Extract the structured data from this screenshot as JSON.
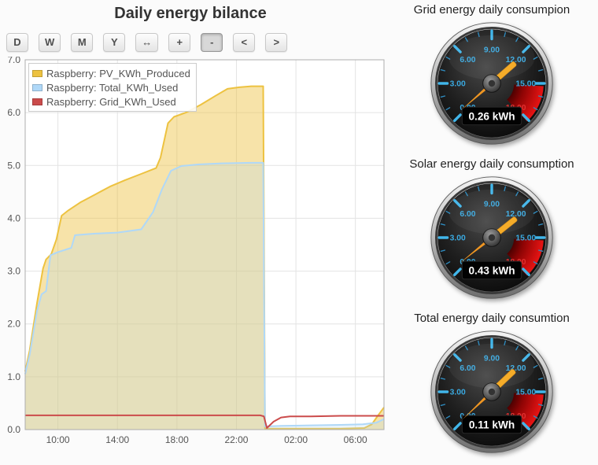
{
  "page": {
    "background": "#fbfbfb"
  },
  "chart": {
    "title": "Daily energy bilance",
    "toolbar": {
      "buttons": [
        {
          "id": "day",
          "label": "D",
          "active": false
        },
        {
          "id": "week",
          "label": "W",
          "active": false
        },
        {
          "id": "month",
          "label": "M",
          "active": false
        },
        {
          "id": "year",
          "label": "Y",
          "active": false
        },
        {
          "id": "fit",
          "label": "↔",
          "active": false
        },
        {
          "id": "zoom-in",
          "label": "+",
          "active": false
        },
        {
          "id": "zoom-out",
          "label": "-",
          "active": true
        },
        {
          "id": "pan-left",
          "label": "<",
          "active": false
        },
        {
          "id": "pan-right",
          "label": ">",
          "active": false
        }
      ]
    }
  },
  "chart_data": {
    "type": "area",
    "title": "Daily energy bilance",
    "x_unit": "time of day (hours, 24+ = next day)",
    "x_range": [
      7.8,
      31.92
    ],
    "ylim": [
      0,
      7
    ],
    "grid": true,
    "legend_position": "top-left",
    "y_tick_labels": [
      "0.0",
      "1.0",
      "2.0",
      "3.0",
      "4.0",
      "5.0",
      "6.0",
      "7.0"
    ],
    "x_ticks": [
      {
        "x": 10,
        "label": "10:00"
      },
      {
        "x": 14,
        "label": "14:00"
      },
      {
        "x": 18,
        "label": "18:00"
      },
      {
        "x": 22,
        "label": "22:00"
      },
      {
        "x": 26,
        "label": "02:00"
      },
      {
        "x": 30,
        "label": "06:00"
      }
    ],
    "series": [
      {
        "name": "Raspberry: PV_KWh_Produced",
        "color": "#edc240",
        "fill": "rgba(237,194,64,0.45)",
        "points": [
          [
            7.8,
            1.1
          ],
          [
            8.1,
            1.5
          ],
          [
            8.6,
            2.4
          ],
          [
            9.0,
            3.05
          ],
          [
            9.2,
            3.22
          ],
          [
            9.55,
            3.32
          ],
          [
            9.9,
            3.6
          ],
          [
            10.25,
            4.05
          ],
          [
            10.7,
            4.15
          ],
          [
            11.5,
            4.3
          ],
          [
            12.5,
            4.45
          ],
          [
            13.5,
            4.6
          ],
          [
            14.5,
            4.72
          ],
          [
            15.6,
            4.84
          ],
          [
            16.6,
            4.95
          ],
          [
            16.9,
            5.15
          ],
          [
            17.4,
            5.8
          ],
          [
            17.8,
            5.92
          ],
          [
            18.6,
            6.0
          ],
          [
            19.6,
            6.15
          ],
          [
            20.6,
            6.32
          ],
          [
            21.4,
            6.45
          ],
          [
            22.2,
            6.48
          ],
          [
            23.0,
            6.5
          ],
          [
            23.8,
            6.5
          ],
          [
            23.92,
            0.02
          ],
          [
            25,
            0.02
          ],
          [
            27,
            0.02
          ],
          [
            29,
            0.02
          ],
          [
            30.6,
            0.03
          ],
          [
            31.1,
            0.1
          ],
          [
            31.5,
            0.26
          ],
          [
            31.92,
            0.42
          ]
        ]
      },
      {
        "name": "Raspberry: Total_KWh_Used",
        "color": "#afd8f8",
        "fill": "rgba(175,216,248,0.25)",
        "points": [
          [
            7.8,
            1.05
          ],
          [
            8.1,
            1.42
          ],
          [
            8.6,
            2.25
          ],
          [
            8.9,
            2.56
          ],
          [
            9.2,
            2.62
          ],
          [
            9.5,
            3.3
          ],
          [
            10.0,
            3.36
          ],
          [
            10.9,
            3.44
          ],
          [
            11.15,
            3.68
          ],
          [
            12.5,
            3.71
          ],
          [
            14.0,
            3.73
          ],
          [
            15.6,
            3.79
          ],
          [
            16.4,
            4.12
          ],
          [
            17.0,
            4.55
          ],
          [
            17.6,
            4.9
          ],
          [
            18.3,
            4.99
          ],
          [
            19.5,
            5.02
          ],
          [
            21.0,
            5.04
          ],
          [
            23.0,
            5.05
          ],
          [
            23.8,
            5.05
          ],
          [
            23.92,
            0.06
          ],
          [
            25,
            0.07
          ],
          [
            27,
            0.08
          ],
          [
            29,
            0.09
          ],
          [
            30.5,
            0.1
          ],
          [
            31.4,
            0.13
          ],
          [
            31.92,
            0.2
          ]
        ]
      },
      {
        "name": "Raspberry: Grid_KWh_Used",
        "color": "#cb4b4b",
        "fill": null,
        "points": [
          [
            7.8,
            0.27
          ],
          [
            12,
            0.27
          ],
          [
            16,
            0.27
          ],
          [
            20,
            0.27
          ],
          [
            23.6,
            0.27
          ],
          [
            23.85,
            0.25
          ],
          [
            24.05,
            0.03
          ],
          [
            24.5,
            0.15
          ],
          [
            25.0,
            0.23
          ],
          [
            25.6,
            0.25
          ],
          [
            27,
            0.25
          ],
          [
            29,
            0.26
          ],
          [
            31,
            0.26
          ],
          [
            31.92,
            0.26
          ]
        ]
      }
    ]
  },
  "gauges": {
    "scale": {
      "min": 0,
      "max": 18,
      "start_angle": -135,
      "sweep": 270,
      "major_labels": [
        "0.00",
        "3.00",
        "6.00",
        "9.00",
        "12.00",
        "15.00",
        "18.00"
      ],
      "label_color": "#3aa9e0",
      "tick_color": "#41b6ea",
      "danger_label": "18.00",
      "danger_color": "#e03030",
      "danger_from": 15,
      "danger_to": 18,
      "needle_color": "#f5a81e"
    },
    "items": [
      {
        "title": "Grid energy daily consumpion",
        "value": 0.26,
        "display": "0.26 kWh"
      },
      {
        "title": "Solar energy daily consumption",
        "value": 0.43,
        "display": "0.43 kWh"
      },
      {
        "title": "Total energy daily consumtion",
        "value": 0.11,
        "display": "0.11 kWh"
      }
    ]
  }
}
